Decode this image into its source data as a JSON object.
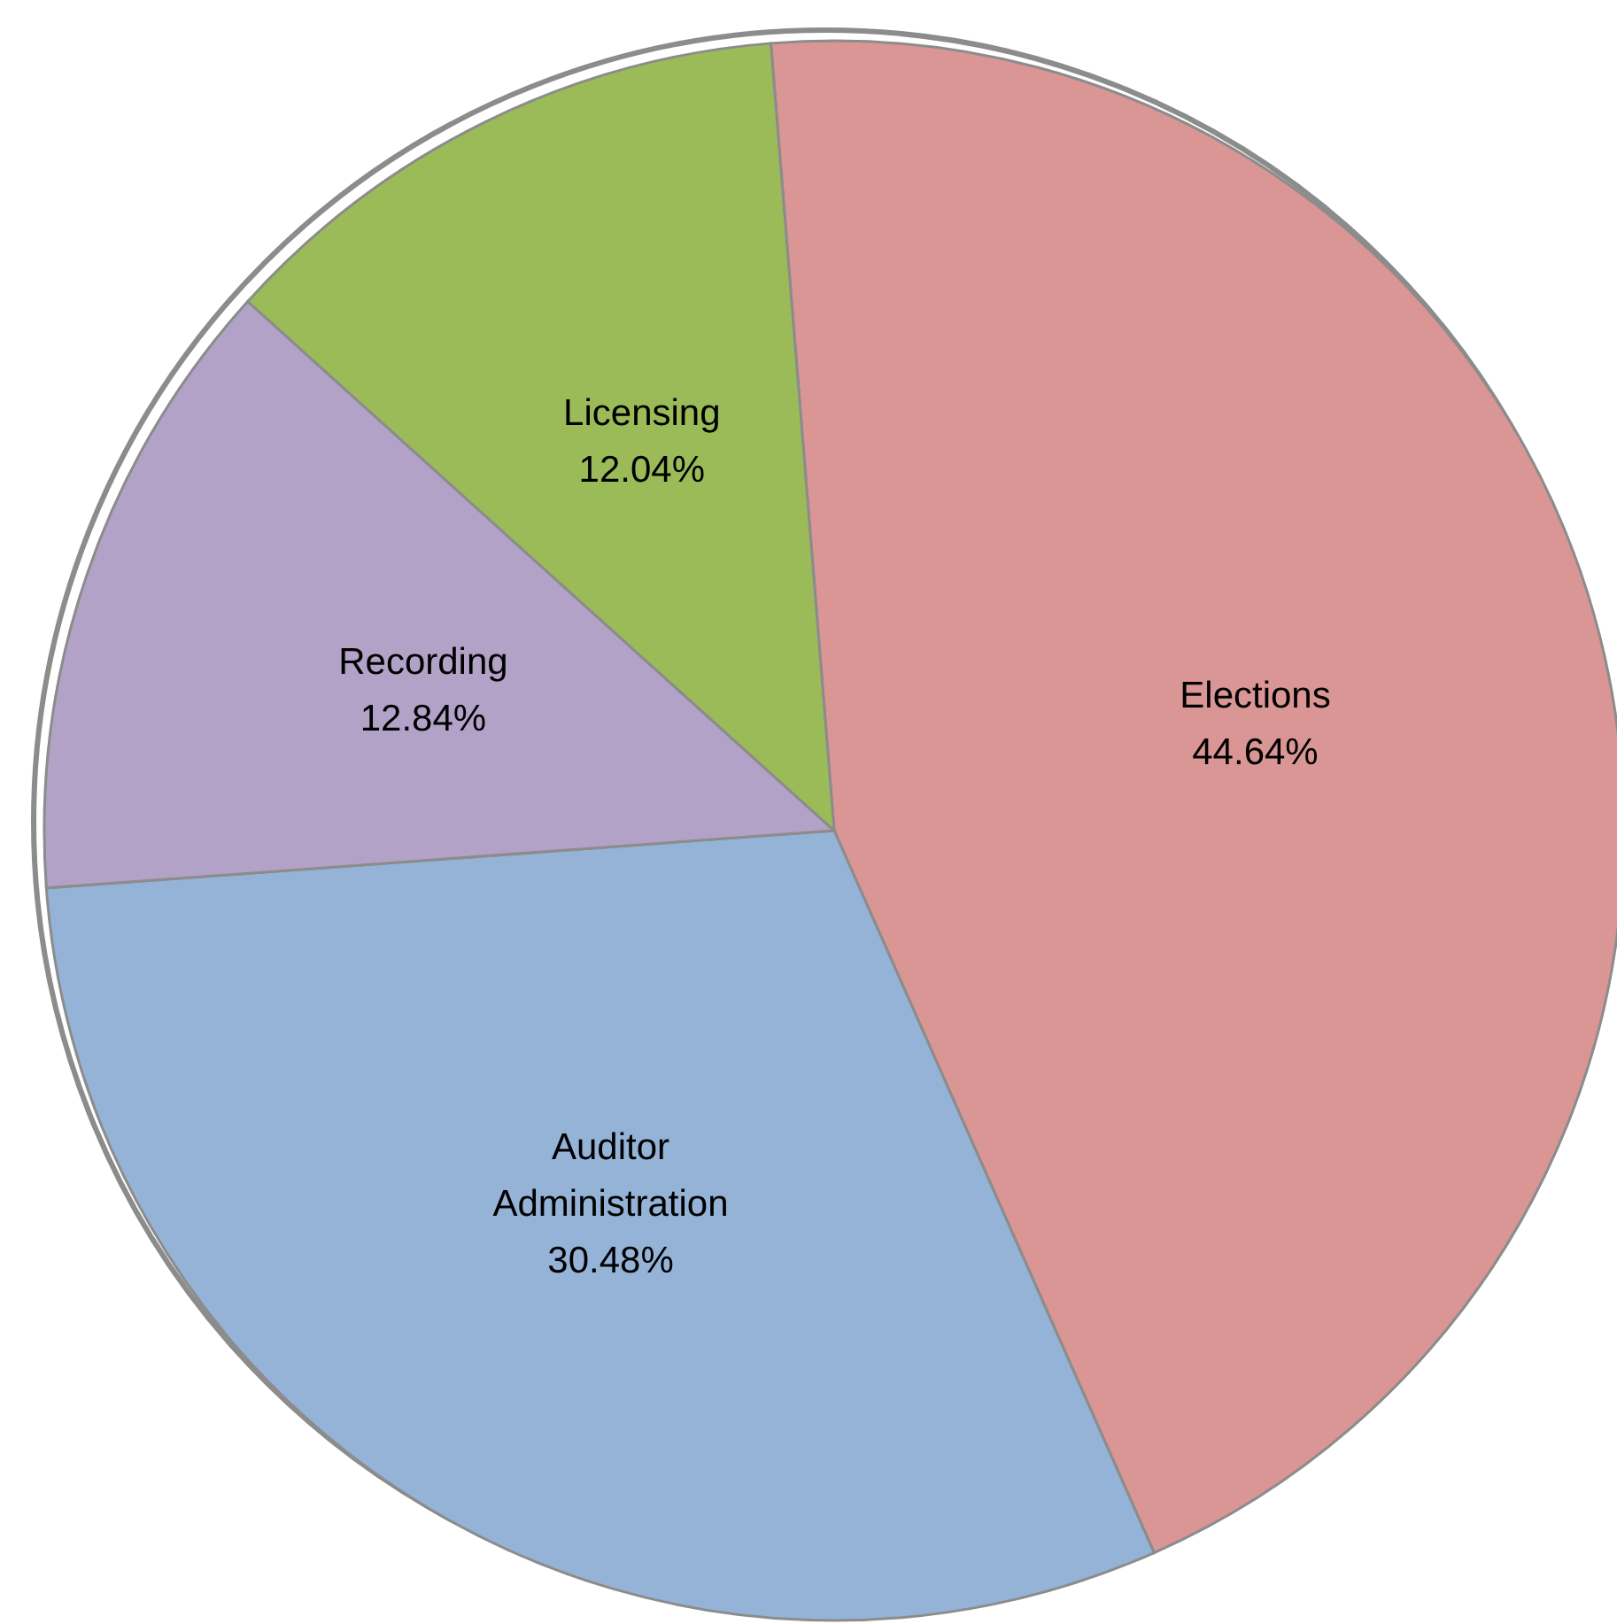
{
  "chart_data": {
    "type": "pie",
    "categories": [
      "Elections",
      "Auditor Administration",
      "Recording",
      "Licensing"
    ],
    "values": [
      44.64,
      30.48,
      12.84,
      12.04
    ],
    "value_labels": [
      "44.64%",
      "30.48%",
      "12.84%",
      "12.04%"
    ],
    "colors": [
      "#d99694",
      "#95b3d7",
      "#b3a2c7",
      "#9bbb59"
    ],
    "legend": false
  }
}
